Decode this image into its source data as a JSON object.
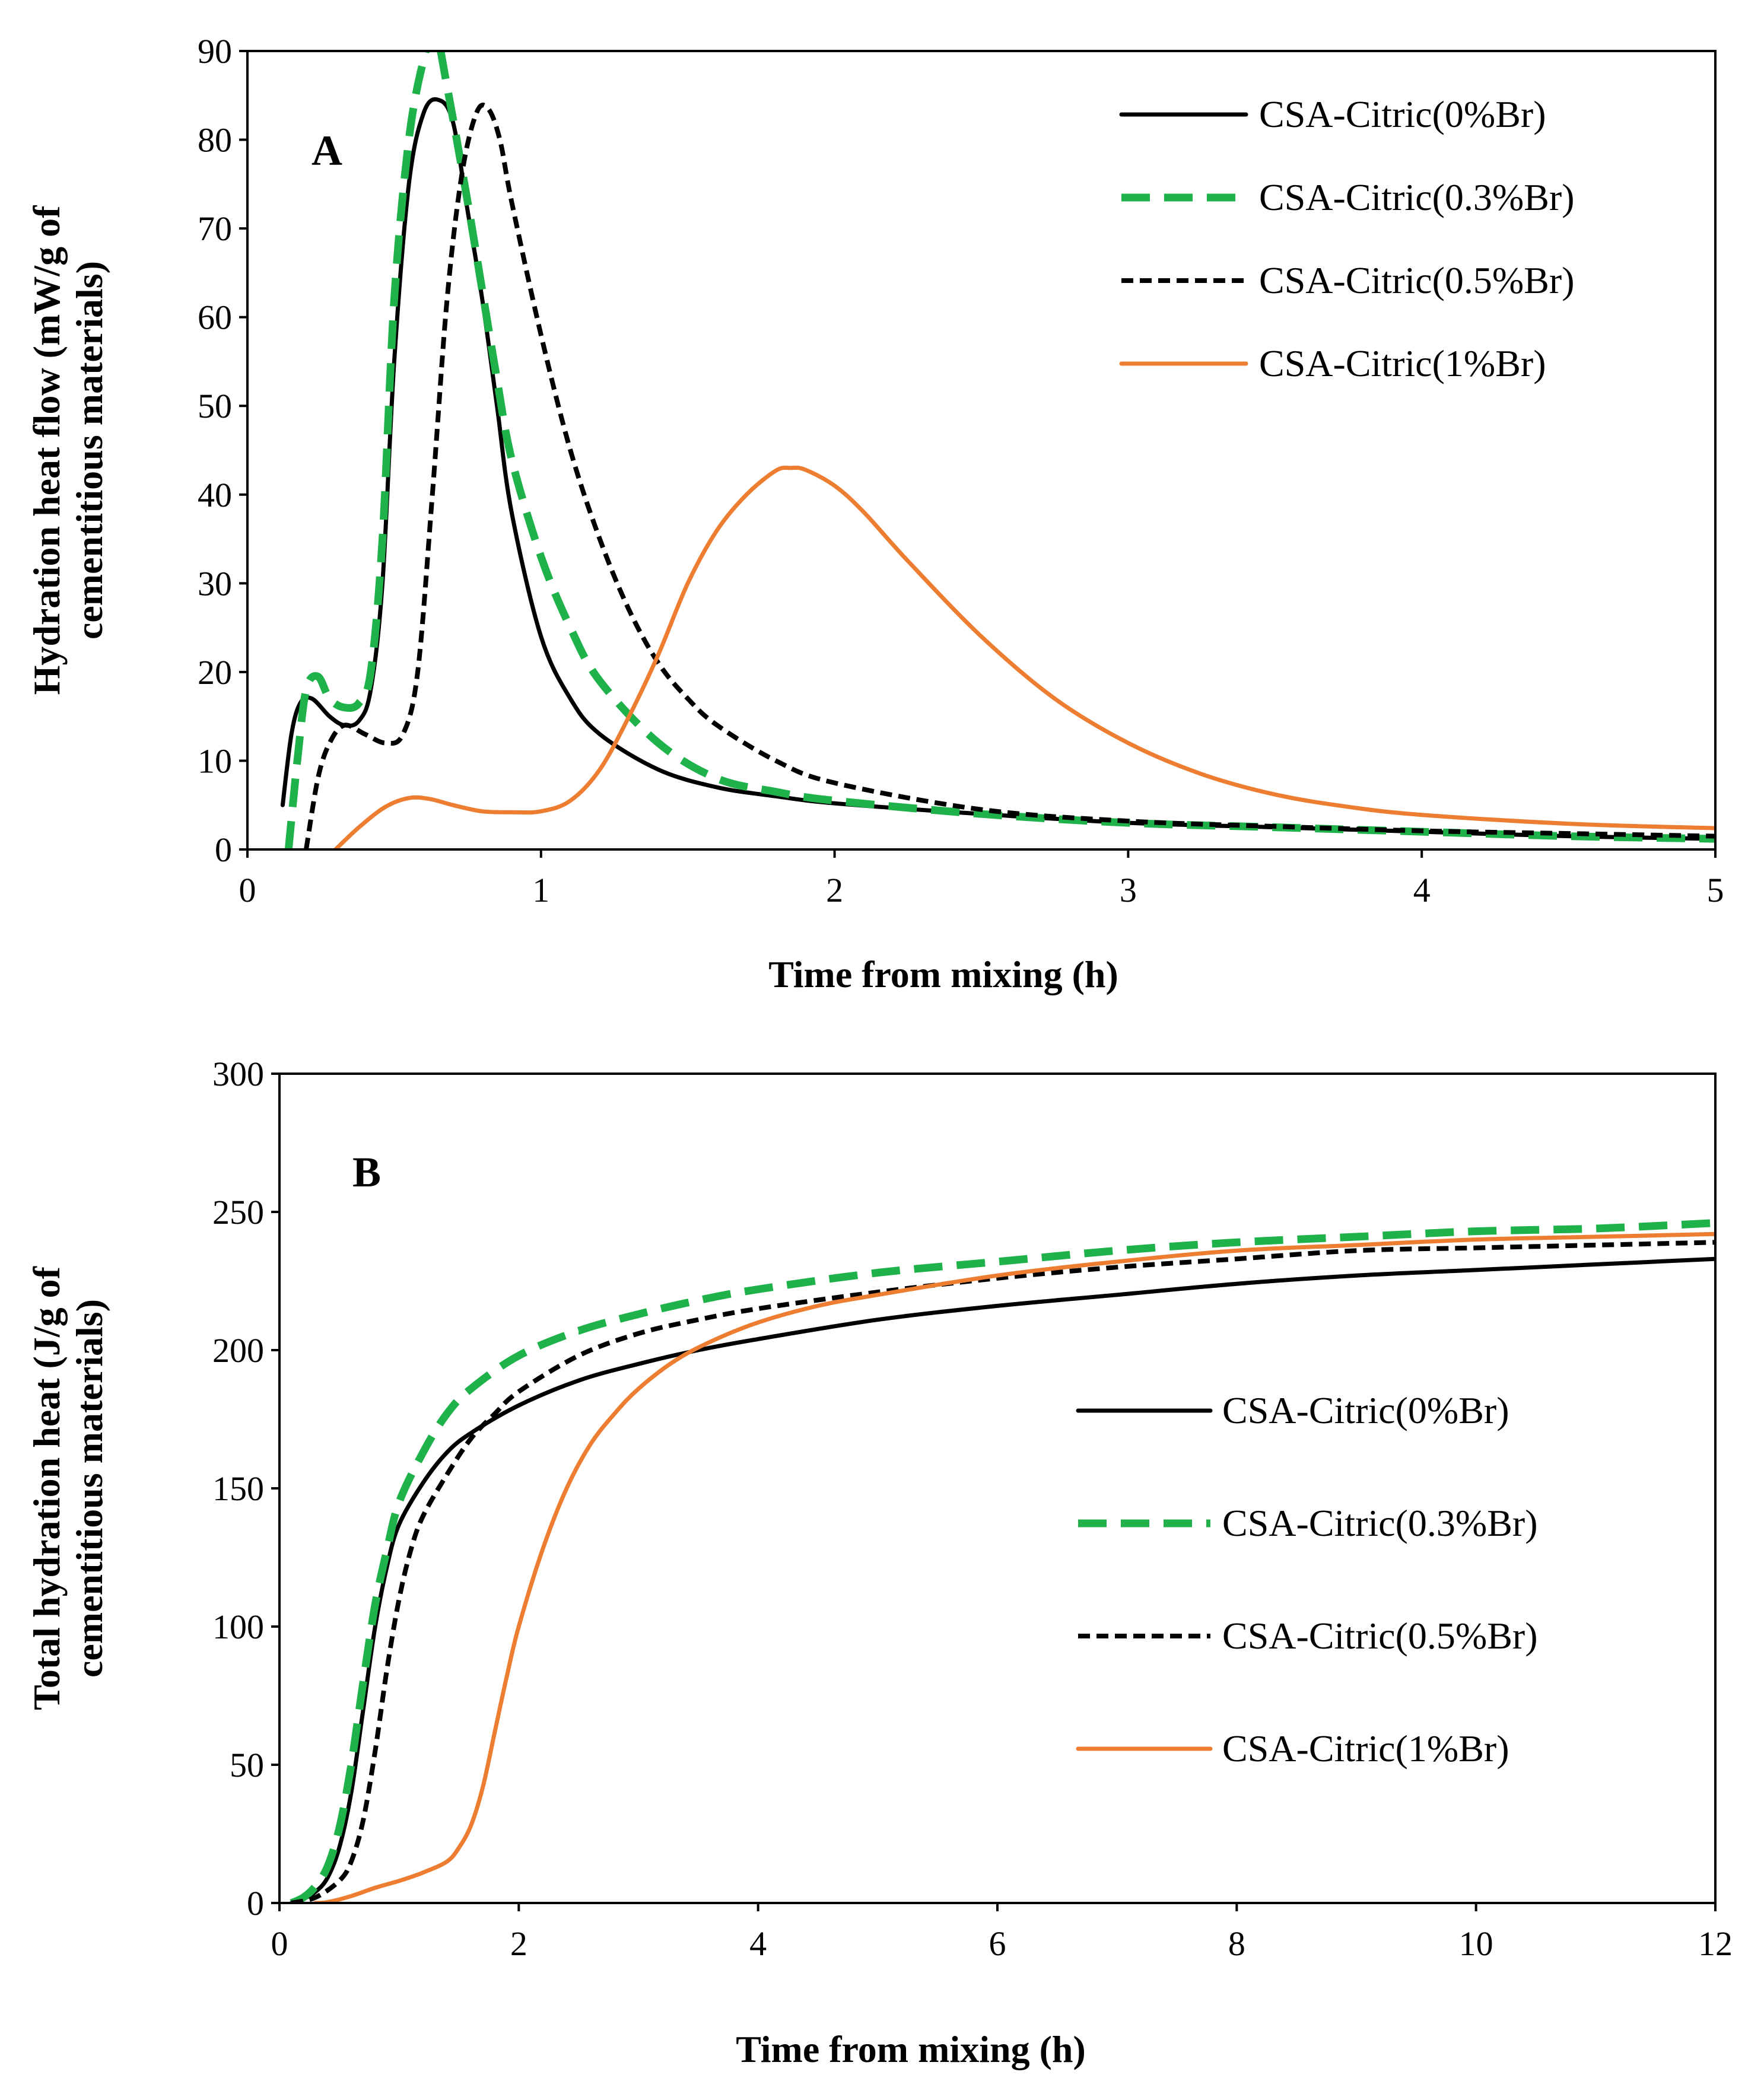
{
  "chart_data": [
    {
      "type": "line",
      "panel": "A",
      "xlabel": "Time from mixing (h)",
      "ylabel": [
        "Hydration heat flow (mW/g of",
        "cementitious materials)"
      ],
      "xlim": [
        0,
        5
      ],
      "ylim": [
        0,
        90
      ],
      "xticks": [
        0,
        1,
        2,
        3,
        4,
        5
      ],
      "yticks": [
        0,
        10,
        20,
        30,
        40,
        50,
        60,
        70,
        80,
        90
      ],
      "legend_position": "top-right",
      "series": [
        {
          "name": "CSA-Citric(0%Br)",
          "color": "#000000",
          "style": "solid",
          "points": [
            [
              0.12,
              5
            ],
            [
              0.15,
              13
            ],
            [
              0.18,
              16.5
            ],
            [
              0.22,
              17
            ],
            [
              0.28,
              15
            ],
            [
              0.33,
              14
            ],
            [
              0.38,
              14.5
            ],
            [
              0.42,
              18
            ],
            [
              0.46,
              30
            ],
            [
              0.5,
              55
            ],
            [
              0.55,
              75
            ],
            [
              0.6,
              83
            ],
            [
              0.65,
              84.5
            ],
            [
              0.7,
              82
            ],
            [
              0.75,
              72
            ],
            [
              0.8,
              62
            ],
            [
              0.85,
              50
            ],
            [
              0.9,
              38
            ],
            [
              1.0,
              24
            ],
            [
              1.1,
              17
            ],
            [
              1.2,
              13
            ],
            [
              1.4,
              9
            ],
            [
              1.6,
              7
            ],
            [
              1.8,
              6
            ],
            [
              2.0,
              5.2
            ],
            [
              2.5,
              4
            ],
            [
              3.0,
              3
            ],
            [
              3.5,
              2.5
            ],
            [
              4.0,
              2
            ],
            [
              4.5,
              1.5
            ],
            [
              5.0,
              1.2
            ]
          ]
        },
        {
          "name": "CSA-Citric(0.3%Br)",
          "color": "#1fb24a",
          "style": "dashed",
          "points": [
            [
              0.14,
              0
            ],
            [
              0.17,
              10
            ],
            [
              0.2,
              18
            ],
            [
              0.24,
              19.5
            ],
            [
              0.28,
              17
            ],
            [
              0.33,
              16
            ],
            [
              0.38,
              16.5
            ],
            [
              0.42,
              20
            ],
            [
              0.46,
              35
            ],
            [
              0.5,
              62
            ],
            [
              0.55,
              80
            ],
            [
              0.6,
              89
            ],
            [
              0.64,
              92
            ],
            [
              0.68,
              86
            ],
            [
              0.75,
              73
            ],
            [
              0.8,
              63
            ],
            [
              0.85,
              53
            ],
            [
              0.9,
              44
            ],
            [
              1.0,
              33
            ],
            [
              1.1,
              25
            ],
            [
              1.2,
              19
            ],
            [
              1.4,
              12
            ],
            [
              1.6,
              8
            ],
            [
              1.8,
              6.5
            ],
            [
              2.0,
              5.5
            ],
            [
              2.5,
              4
            ],
            [
              3.0,
              3
            ],
            [
              3.5,
              2.5
            ],
            [
              4.0,
              2
            ],
            [
              4.5,
              1.5
            ],
            [
              5.0,
              1.2
            ]
          ]
        },
        {
          "name": "CSA-Citric(0.5%Br)",
          "color": "#000000",
          "style": "dotted",
          "points": [
            [
              0.2,
              0
            ],
            [
              0.24,
              8
            ],
            [
              0.28,
              12
            ],
            [
              0.33,
              14
            ],
            [
              0.4,
              13
            ],
            [
              0.47,
              12
            ],
            [
              0.53,
              13
            ],
            [
              0.58,
              20
            ],
            [
              0.63,
              40
            ],
            [
              0.68,
              62
            ],
            [
              0.73,
              76
            ],
            [
              0.78,
              83
            ],
            [
              0.82,
              83.5
            ],
            [
              0.86,
              80
            ],
            [
              0.9,
              73
            ],
            [
              1.0,
              58
            ],
            [
              1.1,
              45
            ],
            [
              1.2,
              35
            ],
            [
              1.3,
              27
            ],
            [
              1.4,
              21
            ],
            [
              1.5,
              17
            ],
            [
              1.6,
              14
            ],
            [
              1.8,
              10
            ],
            [
              2.0,
              7.5
            ],
            [
              2.5,
              4.5
            ],
            [
              3.0,
              3.2
            ],
            [
              3.5,
              2.6
            ],
            [
              4.0,
              2.1
            ],
            [
              4.5,
              1.8
            ],
            [
              5.0,
              1.5
            ]
          ]
        },
        {
          "name": "CSA-Citric(1%Br)",
          "color": "#ed7d31",
          "style": "solid",
          "points": [
            [
              0.3,
              0
            ],
            [
              0.38,
              2.5
            ],
            [
              0.47,
              4.8
            ],
            [
              0.55,
              5.8
            ],
            [
              0.62,
              5.7
            ],
            [
              0.7,
              5
            ],
            [
              0.8,
              4.3
            ],
            [
              0.9,
              4.2
            ],
            [
              1.0,
              4.3
            ],
            [
              1.1,
              5.5
            ],
            [
              1.2,
              9
            ],
            [
              1.3,
              15
            ],
            [
              1.4,
              22
            ],
            [
              1.5,
              30
            ],
            [
              1.6,
              36
            ],
            [
              1.7,
              40
            ],
            [
              1.8,
              42.7
            ],
            [
              1.85,
              43
            ],
            [
              1.9,
              42.8
            ],
            [
              2.0,
              41
            ],
            [
              2.1,
              38
            ],
            [
              2.25,
              32.5
            ],
            [
              2.5,
              24
            ],
            [
              2.75,
              17
            ],
            [
              3.0,
              12
            ],
            [
              3.25,
              8.5
            ],
            [
              3.5,
              6.2
            ],
            [
              3.75,
              4.8
            ],
            [
              4.0,
              3.9
            ],
            [
              4.5,
              2.9
            ],
            [
              5.0,
              2.4
            ]
          ]
        }
      ]
    },
    {
      "type": "line",
      "panel": "B",
      "xlabel": "Time from mixing (h)",
      "ylabel": [
        "Total hydration heat (J/g of",
        "cementitious materials)"
      ],
      "xlim": [
        0,
        12
      ],
      "ylim": [
        0,
        300
      ],
      "xticks": [
        0,
        2,
        4,
        6,
        8,
        10,
        12
      ],
      "yticks": [
        0,
        50,
        100,
        150,
        200,
        250,
        300
      ],
      "legend_position": "center-right",
      "series": [
        {
          "name": "CSA-Citric(0%Br)",
          "color": "#000000",
          "style": "solid",
          "points": [
            [
              0.1,
              0
            ],
            [
              0.2,
              1.5
            ],
            [
              0.3,
              4
            ],
            [
              0.4,
              9
            ],
            [
              0.5,
              20
            ],
            [
              0.6,
              40
            ],
            [
              0.7,
              70
            ],
            [
              0.8,
              100
            ],
            [
              0.9,
              122
            ],
            [
              1.0,
              137
            ],
            [
              1.2,
              152
            ],
            [
              1.4,
              163
            ],
            [
              1.6,
              170
            ],
            [
              2.0,
              180
            ],
            [
              2.5,
              189
            ],
            [
              3.0,
              195
            ],
            [
              3.5,
              200
            ],
            [
              4.0,
              204
            ],
            [
              5.0,
              211
            ],
            [
              6.0,
              216
            ],
            [
              7.0,
              220
            ],
            [
              8.0,
              224
            ],
            [
              9.0,
              227
            ],
            [
              10.0,
              229
            ],
            [
              11.0,
              231
            ],
            [
              12.0,
              233
            ]
          ]
        },
        {
          "name": "CSA-Citric(0.3%Br)",
          "color": "#1fb24a",
          "style": "dashed",
          "points": [
            [
              0.1,
              0
            ],
            [
              0.2,
              2
            ],
            [
              0.3,
              6
            ],
            [
              0.4,
              13
            ],
            [
              0.5,
              27
            ],
            [
              0.6,
              50
            ],
            [
              0.7,
              80
            ],
            [
              0.8,
              108
            ],
            [
              0.9,
              128
            ],
            [
              1.0,
              145
            ],
            [
              1.2,
              163
            ],
            [
              1.4,
              177
            ],
            [
              1.6,
              186
            ],
            [
              2.0,
              198
            ],
            [
              2.5,
              207
            ],
            [
              3.0,
              213
            ],
            [
              3.5,
              218
            ],
            [
              4.0,
              222
            ],
            [
              5.0,
              228
            ],
            [
              6.0,
              232
            ],
            [
              7.0,
              236
            ],
            [
              8.0,
              239
            ],
            [
              9.0,
              241
            ],
            [
              10.0,
              243
            ],
            [
              11.0,
              244
            ],
            [
              12.0,
              246
            ]
          ]
        },
        {
          "name": "CSA-Citric(0.5%Br)",
          "color": "#000000",
          "style": "dotted",
          "points": [
            [
              0.1,
              0
            ],
            [
              0.3,
              2
            ],
            [
              0.5,
              8
            ],
            [
              0.6,
              15
            ],
            [
              0.7,
              30
            ],
            [
              0.8,
              55
            ],
            [
              0.9,
              85
            ],
            [
              1.0,
              110
            ],
            [
              1.1,
              128
            ],
            [
              1.2,
              140
            ],
            [
              1.4,
              155
            ],
            [
              1.6,
              168
            ],
            [
              1.8,
              177
            ],
            [
              2.0,
              185
            ],
            [
              2.5,
              198
            ],
            [
              3.0,
              206
            ],
            [
              3.5,
              211
            ],
            [
              4.0,
              215
            ],
            [
              5.0,
              221
            ],
            [
              6.0,
              226
            ],
            [
              7.0,
              230
            ],
            [
              8.0,
              233
            ],
            [
              9.0,
              236
            ],
            [
              10.0,
              237
            ],
            [
              11.0,
              238
            ],
            [
              12.0,
              239
            ]
          ]
        },
        {
          "name": "CSA-Citric(1%Br)",
          "color": "#ed7d31",
          "style": "solid",
          "points": [
            [
              0.3,
              0
            ],
            [
              0.4,
              0.3
            ],
            [
              0.6,
              2.5
            ],
            [
              0.8,
              5.5
            ],
            [
              1.0,
              8
            ],
            [
              1.2,
              11
            ],
            [
              1.4,
              15
            ],
            [
              1.5,
              20
            ],
            [
              1.6,
              28
            ],
            [
              1.7,
              42
            ],
            [
              1.8,
              62
            ],
            [
              1.9,
              82
            ],
            [
              2.0,
              100
            ],
            [
              2.2,
              128
            ],
            [
              2.4,
              150
            ],
            [
              2.6,
              166
            ],
            [
              2.8,
              177
            ],
            [
              3.0,
              186
            ],
            [
              3.3,
              196
            ],
            [
              3.6,
              203
            ],
            [
              4.0,
              210
            ],
            [
              4.5,
              216
            ],
            [
              5.0,
              220
            ],
            [
              6.0,
              227
            ],
            [
              7.0,
              232
            ],
            [
              8.0,
              236
            ],
            [
              9.0,
              238
            ],
            [
              10.0,
              240
            ],
            [
              11.0,
              241
            ],
            [
              12.0,
              242
            ]
          ]
        }
      ]
    }
  ]
}
